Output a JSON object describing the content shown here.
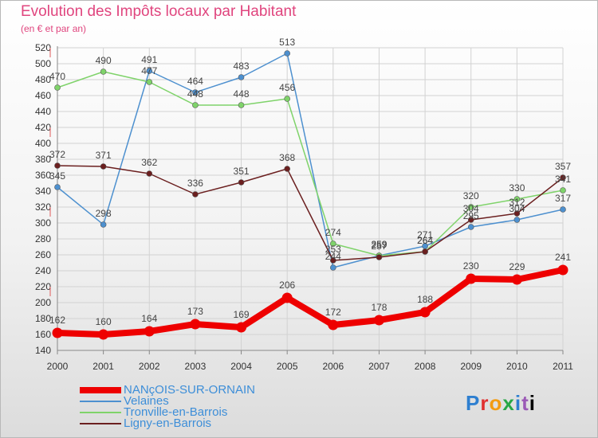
{
  "chart_data": {
    "type": "line",
    "title": "Evolution des Impôts locaux par Habitant",
    "subtitle": "(en € et par an)",
    "x": [
      "2000",
      "2001",
      "2002",
      "2003",
      "2004",
      "2005",
      "2006",
      "2007",
      "2008",
      "2009",
      "2010",
      "2011"
    ],
    "ylim": [
      140,
      520
    ],
    "yticks": [
      140,
      160,
      180,
      200,
      220,
      240,
      260,
      280,
      300,
      320,
      340,
      360,
      380,
      400,
      420,
      440,
      460,
      480,
      500,
      520
    ],
    "series": [
      {
        "name": "NANçOIS-SUR-ORNAIN",
        "color": "#ee0000",
        "values": [
          162,
          160,
          164,
          173,
          169,
          206,
          172,
          178,
          188,
          230,
          229,
          241
        ]
      },
      {
        "name": "Velaines",
        "color": "#4d90cf",
        "values": [
          345,
          298,
          491,
          464,
          483,
          513,
          244,
          259,
          271,
          295,
          304,
          317
        ]
      },
      {
        "name": "Tronville-en-Barrois",
        "color": "#7fd36a",
        "values": [
          470,
          490,
          477,
          448,
          448,
          456,
          274,
          259,
          264,
          320,
          330,
          341
        ]
      },
      {
        "name": "Ligny-en-Barrois",
        "color": "#6b1f1f",
        "values": [
          372,
          371,
          362,
          336,
          351,
          368,
          253,
          257,
          264,
          304,
          312,
          357
        ]
      }
    ]
  },
  "logo_text": "Proxiti"
}
